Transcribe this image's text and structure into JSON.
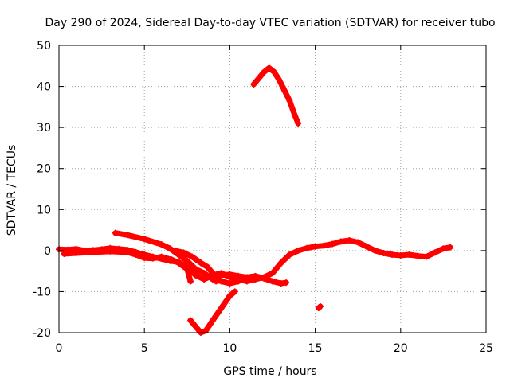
{
  "chart_data": {
    "type": "scatter",
    "title": "Day 290 of 2024, Sidereal Day-to-day VTEC variation (SDTVAR) for receiver tubo",
    "xlabel": "GPS time / hours",
    "ylabel": "SDTVAR / TECUs",
    "xlim": [
      0,
      25
    ],
    "ylim": [
      -20,
      50
    ],
    "grid": true,
    "x_ticks": [
      0,
      5,
      10,
      15,
      20,
      25
    ],
    "x_tick_labels": [
      "0",
      "5",
      "10",
      "15",
      "20",
      "25"
    ],
    "y_ticks": [
      -20,
      -10,
      0,
      10,
      20,
      30,
      40,
      50
    ],
    "y_tick_labels": [
      "-20",
      "-10",
      "0",
      "10",
      "20",
      "30",
      "40",
      "50"
    ],
    "marker_color": "#ff0000",
    "series": [
      {
        "name": "band-main",
        "points": [
          [
            0.0,
            0.3
          ],
          [
            0.5,
            0.2
          ],
          [
            1.0,
            0.4
          ],
          [
            1.5,
            0.0
          ],
          [
            2.0,
            0.1
          ],
          [
            2.5,
            0.3
          ],
          [
            3.0,
            0.6
          ],
          [
            3.5,
            0.4
          ],
          [
            4.0,
            0.2
          ],
          [
            4.5,
            -0.4
          ],
          [
            5.0,
            -1.0
          ],
          [
            5.5,
            -1.5
          ],
          [
            6.0,
            -2.0
          ],
          [
            6.5,
            -2.5
          ],
          [
            7.0,
            -2.8
          ],
          [
            7.5,
            -4.0
          ],
          [
            8.0,
            -6.0
          ],
          [
            8.5,
            -7.0
          ],
          [
            9.0,
            -6.0
          ],
          [
            9.5,
            -5.5
          ],
          [
            10.0,
            -6.5
          ],
          [
            10.5,
            -7.0
          ],
          [
            11.0,
            -7.5
          ],
          [
            11.5,
            -7.0
          ],
          [
            12.0,
            -6.5
          ],
          [
            12.5,
            -5.5
          ],
          [
            13.0,
            -3.0
          ],
          [
            13.5,
            -1.0
          ],
          [
            14.0,
            0.0
          ],
          [
            14.5,
            0.6
          ],
          [
            15.0,
            1.0
          ],
          [
            15.5,
            1.2
          ],
          [
            16.0,
            1.6
          ],
          [
            16.5,
            2.2
          ],
          [
            17.0,
            2.5
          ],
          [
            17.5,
            2.0
          ],
          [
            18.0,
            1.0
          ],
          [
            18.5,
            0.0
          ],
          [
            19.0,
            -0.6
          ],
          [
            19.5,
            -1.0
          ],
          [
            20.0,
            -1.2
          ],
          [
            20.5,
            -1.0
          ],
          [
            21.0,
            -1.3
          ],
          [
            21.5,
            -1.5
          ],
          [
            22.0,
            -0.5
          ],
          [
            22.5,
            0.5
          ],
          [
            22.9,
            0.8
          ]
        ]
      },
      {
        "name": "band-lower-branch",
        "points": [
          [
            0.3,
            -0.8
          ],
          [
            1.0,
            -0.6
          ],
          [
            2.0,
            -0.4
          ],
          [
            3.0,
            -0.2
          ],
          [
            4.0,
            -0.4
          ],
          [
            4.5,
            -1.0
          ],
          [
            5.0,
            -1.8
          ],
          [
            5.5,
            -1.9
          ],
          [
            6.0,
            -1.5
          ],
          [
            6.6,
            -2.2
          ],
          [
            7.0,
            -3.0
          ],
          [
            7.5,
            -4.5
          ],
          [
            7.7,
            -7.5
          ]
        ]
      },
      {
        "name": "upper-branch-1",
        "points": [
          [
            3.3,
            4.3
          ],
          [
            4.0,
            3.8
          ],
          [
            5.0,
            2.8
          ],
          [
            6.0,
            1.5
          ],
          [
            6.5,
            0.5
          ],
          [
            7.0,
            -1.0
          ],
          [
            7.5,
            -2.5
          ],
          [
            8.0,
            -4.5
          ],
          [
            8.5,
            -5.5
          ],
          [
            9.0,
            -7.0
          ],
          [
            9.5,
            -7.5
          ],
          [
            10.0,
            -8.0
          ],
          [
            10.5,
            -7.5
          ]
        ]
      },
      {
        "name": "upper-branch-2",
        "points": [
          [
            6.8,
            0.0
          ],
          [
            7.3,
            -0.5
          ],
          [
            7.8,
            -1.5
          ],
          [
            8.3,
            -3.0
          ],
          [
            8.7,
            -4.0
          ],
          [
            9.0,
            -5.5
          ],
          [
            9.2,
            -7.5
          ],
          [
            9.5,
            -6.0
          ],
          [
            10.0,
            -5.8
          ],
          [
            10.5,
            -6.2
          ],
          [
            11.0,
            -6.5
          ],
          [
            11.5,
            -6.2
          ],
          [
            12.0,
            -6.8
          ],
          [
            12.5,
            -7.5
          ],
          [
            13.0,
            -8.0
          ],
          [
            13.3,
            -7.8
          ]
        ]
      },
      {
        "name": "descending-arc",
        "points": [
          [
            7.7,
            -17.0
          ],
          [
            8.0,
            -18.5
          ],
          [
            8.3,
            -20.0
          ],
          [
            8.6,
            -19.5
          ],
          [
            9.0,
            -17.0
          ],
          [
            9.5,
            -14.0
          ],
          [
            10.0,
            -11.0
          ],
          [
            10.3,
            -10.0
          ]
        ]
      },
      {
        "name": "high-arc",
        "points": [
          [
            11.4,
            40.5
          ],
          [
            11.7,
            42.0
          ],
          [
            12.0,
            43.5
          ],
          [
            12.3,
            44.5
          ],
          [
            12.6,
            43.5
          ],
          [
            12.9,
            41.5
          ],
          [
            13.2,
            39.0
          ],
          [
            13.5,
            36.5
          ],
          [
            13.8,
            33.0
          ],
          [
            14.0,
            31.0
          ]
        ]
      },
      {
        "name": "isolated-point",
        "points": [
          [
            15.2,
            -14.0
          ],
          [
            15.3,
            -13.6
          ]
        ]
      }
    ]
  }
}
